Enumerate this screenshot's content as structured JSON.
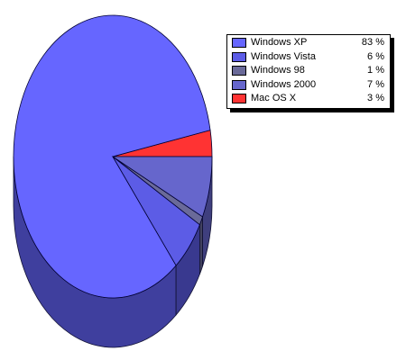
{
  "chart_data": {
    "type": "pie",
    "style": "3d",
    "legend_placement": "top-right",
    "start_angle_deg": 0,
    "slices": [
      {
        "label": "Windows XP",
        "value": 83,
        "display": "83 %",
        "color": "#6666ff"
      },
      {
        "label": "Windows Vista",
        "value": 6,
        "display": "6 %",
        "color": "#5c5ce6"
      },
      {
        "label": "Windows 98",
        "value": 1,
        "display": "1 %",
        "color": "#6a6a99"
      },
      {
        "label": "Windows 2000",
        "value": 7,
        "display": "7 %",
        "color": "#6666cc"
      },
      {
        "label": "Mac OS X",
        "value": 3,
        "display": "3 %",
        "color": "#ff3333"
      }
    ]
  }
}
